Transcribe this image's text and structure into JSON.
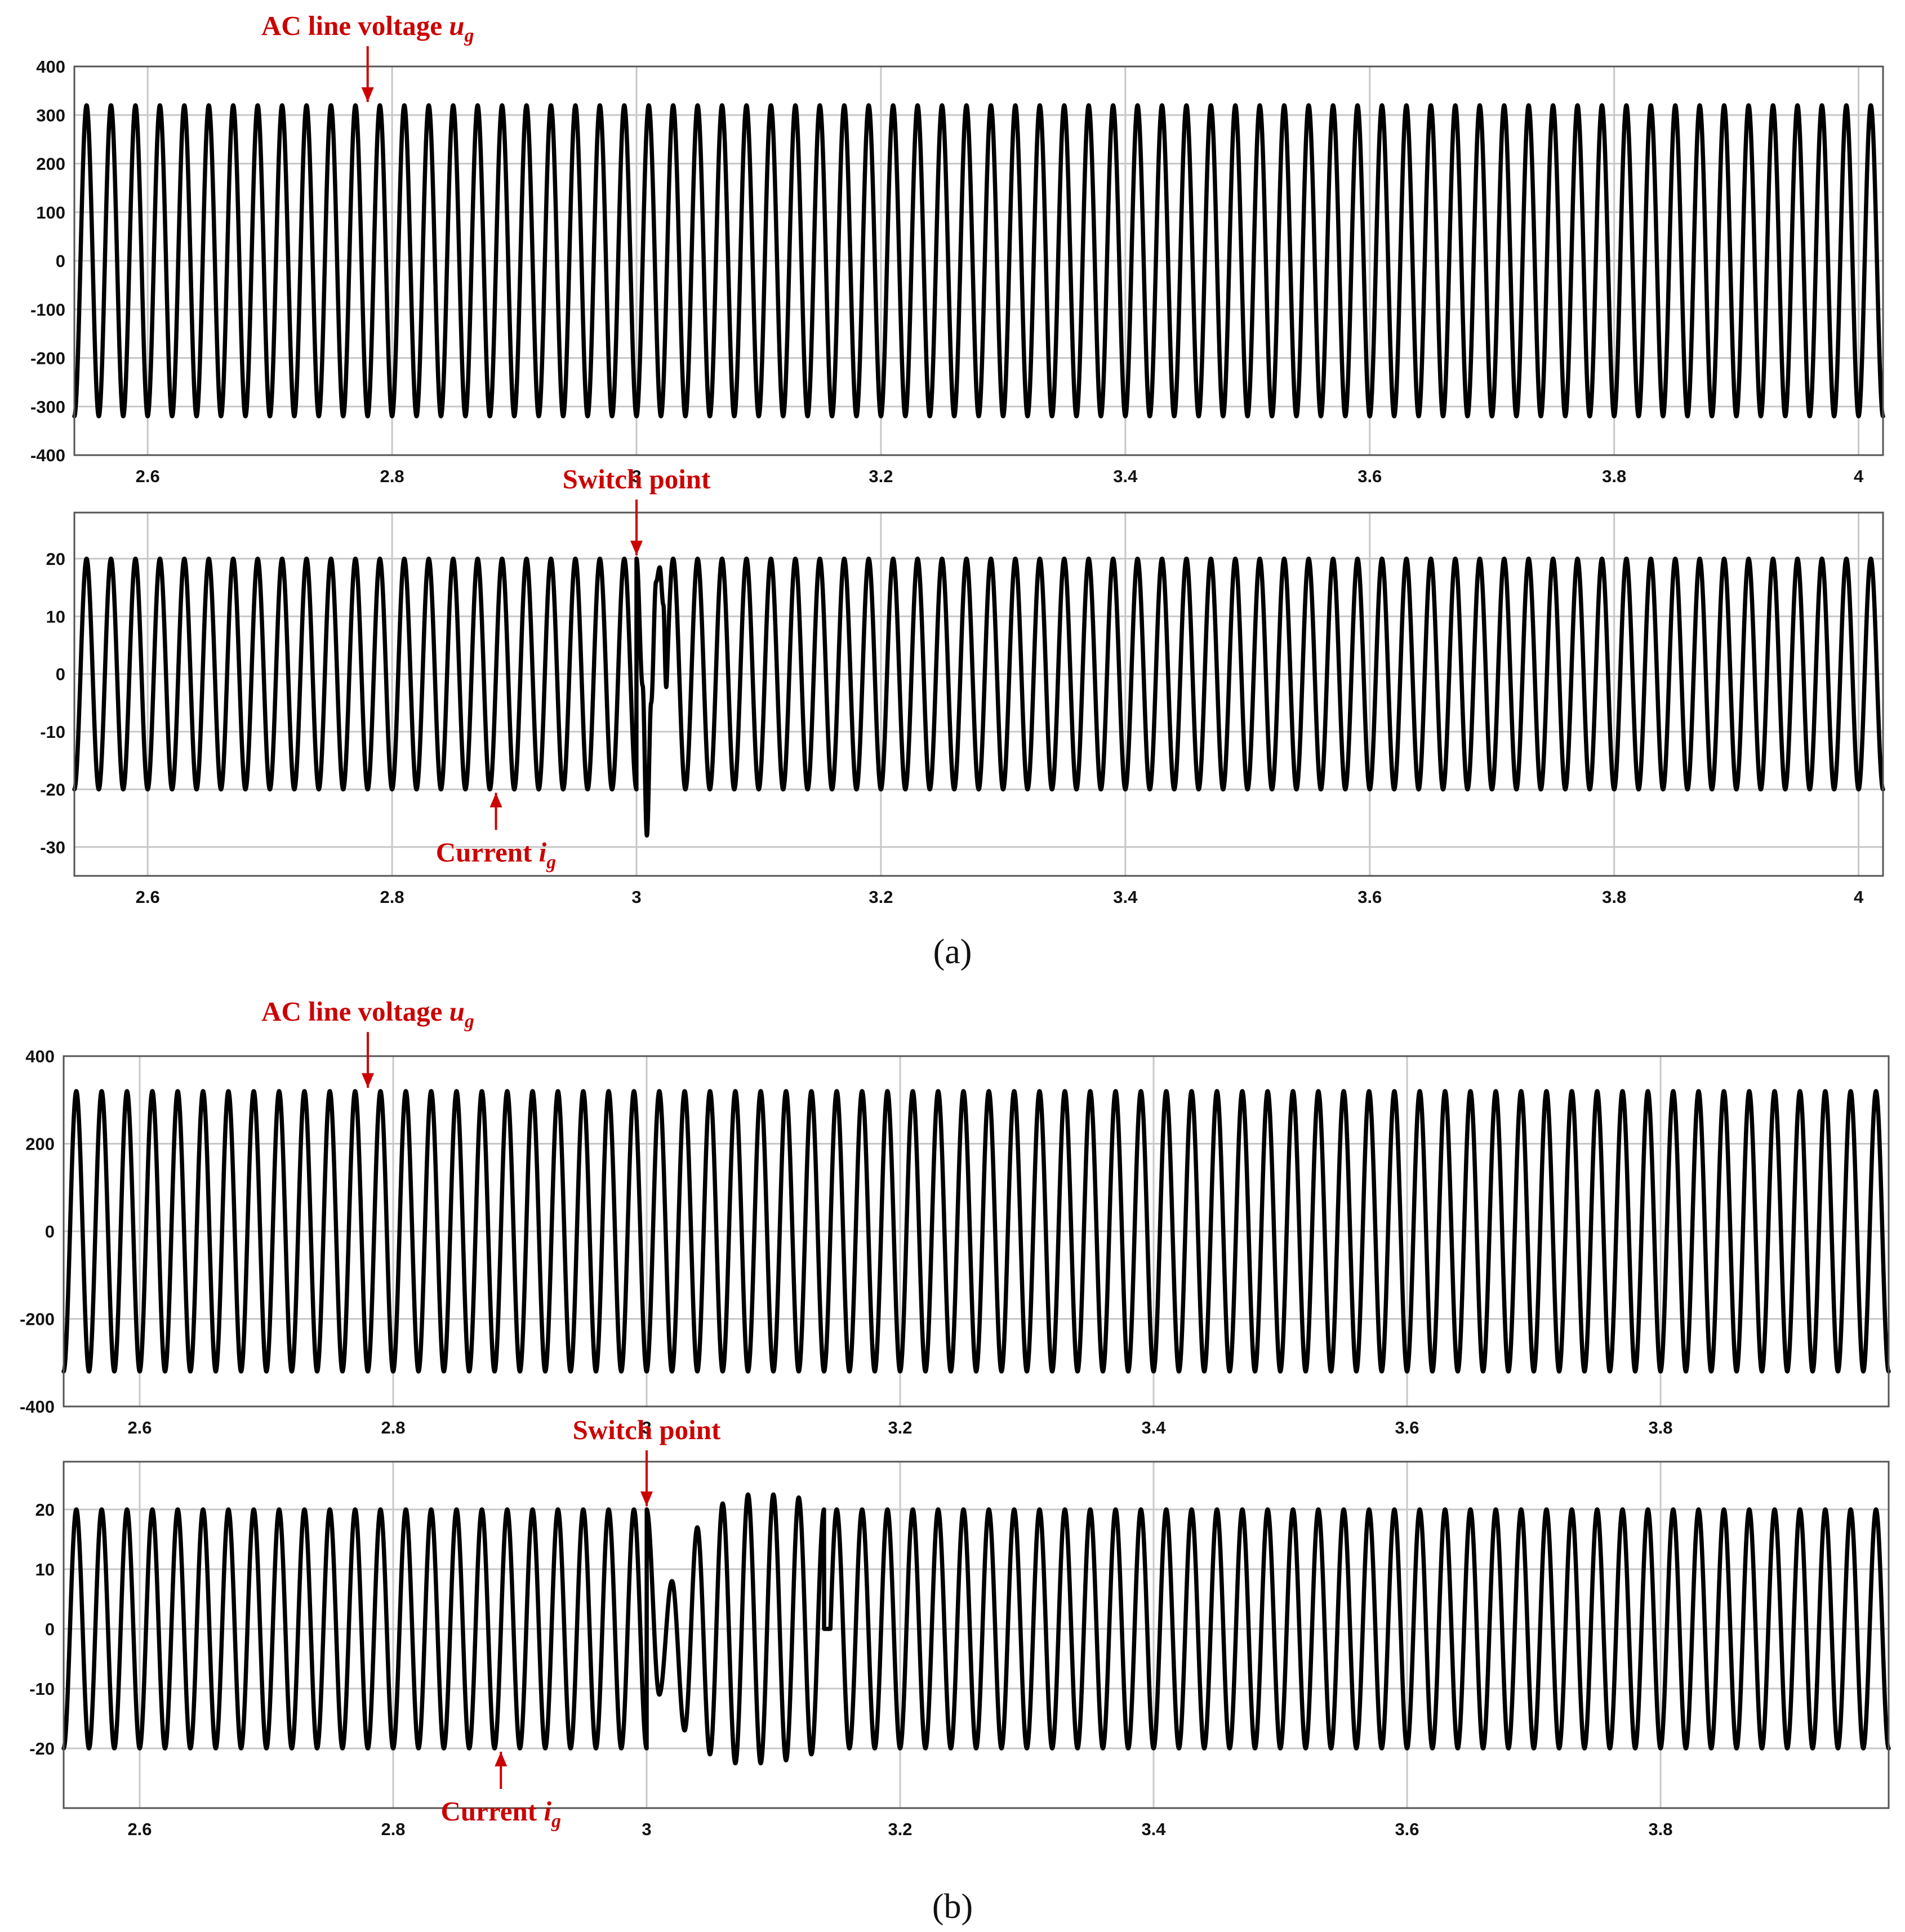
{
  "colors": {
    "trace": "#000000",
    "annotation": "#cc0000",
    "grid": "#c8c8c8",
    "frame": "#555555"
  },
  "figure_labels": [
    {
      "id": "a",
      "text": "(a)"
    },
    {
      "id": "b",
      "text": "(b)"
    }
  ],
  "chart_data": [
    {
      "id": "a-voltage",
      "type": "line",
      "panel": "a",
      "xlim": [
        2.54,
        4.02
      ],
      "ylim": [
        -400,
        400
      ],
      "xticks": [
        2.6,
        2.8,
        3,
        3.2,
        3.4,
        3.6,
        3.8,
        4
      ],
      "yticks": [
        -400,
        -300,
        -200,
        -100,
        0,
        100,
        200,
        300,
        400
      ],
      "grid": true,
      "annotations": [
        {
          "label": "AC line voltage",
          "symbol": "u",
          "subscript": "g",
          "x": 2.78,
          "y": 320,
          "direction": "down"
        }
      ],
      "series": [
        {
          "signal": "sine",
          "frequency_hz": 50,
          "amplitude": 320,
          "phase_deg": -90
        }
      ]
    },
    {
      "id": "a-current",
      "type": "line",
      "panel": "a",
      "xlim": [
        2.54,
        4.02
      ],
      "ylim": [
        -35,
        28
      ],
      "xticks": [
        2.6,
        2.8,
        3,
        3.2,
        3.4,
        3.6,
        3.8,
        4
      ],
      "yticks": [
        -30,
        -20,
        -10,
        0,
        10,
        20
      ],
      "grid": true,
      "annotations": [
        {
          "label": "Switch point",
          "x": 3.0,
          "y": 20,
          "direction": "down"
        },
        {
          "label": "Current",
          "symbol": "i",
          "subscript": "g",
          "x": 2.885,
          "y": -20,
          "direction": "up"
        }
      ],
      "series": [
        {
          "signal": "sine",
          "frequency_hz": 50,
          "amplitude": 20,
          "phase_deg": -90,
          "transient": {
            "points": [
              [
                3.0,
                20
              ],
              [
                3.005,
                -2
              ],
              [
                3.0085,
                -28
              ],
              [
                3.012,
                -5
              ],
              [
                3.016,
                16
              ],
              [
                3.019,
                18.5
              ],
              [
                3.022,
                12
              ]
            ],
            "settle_at": 3.025
          }
        }
      ]
    },
    {
      "id": "b-voltage",
      "type": "line",
      "panel": "b",
      "xlim": [
        2.54,
        3.98
      ],
      "ylim": [
        -400,
        400
      ],
      "xticks": [
        2.6,
        2.8,
        3,
        3.2,
        3.4,
        3.6,
        3.8
      ],
      "yticks": [
        -400,
        -200,
        0,
        200,
        400
      ],
      "grid": true,
      "annotations": [
        {
          "label": "AC line voltage",
          "symbol": "u",
          "subscript": "g",
          "x": 2.78,
          "y": 320,
          "direction": "down"
        }
      ],
      "series": [
        {
          "signal": "sine",
          "frequency_hz": 50,
          "amplitude": 320,
          "phase_deg": -90
        }
      ]
    },
    {
      "id": "b-current",
      "type": "line",
      "panel": "b",
      "xlim": [
        2.54,
        3.98
      ],
      "ylim": [
        -30,
        28
      ],
      "xticks": [
        2.6,
        2.8,
        3,
        3.2,
        3.4,
        3.6,
        3.8
      ],
      "yticks": [
        -20,
        -10,
        0,
        10,
        20
      ],
      "grid": true,
      "annotations": [
        {
          "label": "Switch point",
          "x": 3.0,
          "y": 20,
          "direction": "down"
        },
        {
          "label": "Current",
          "symbol": "i",
          "subscript": "g",
          "x": 2.885,
          "y": -20,
          "direction": "up"
        }
      ],
      "series": [
        {
          "signal": "sine",
          "frequency_hz": 50,
          "amplitude": 20,
          "phase_deg": -90,
          "transient": {
            "from": 3.0,
            "to": 3.145,
            "peaks": [
              [
                3.0,
                20
              ],
              [
                3.01,
                -11
              ],
              [
                3.02,
                8
              ],
              [
                3.03,
                -17
              ],
              [
                3.04,
                17
              ],
              [
                3.05,
                -21
              ],
              [
                3.06,
                21
              ],
              [
                3.07,
                -22.5
              ],
              [
                3.08,
                22.5
              ],
              [
                3.09,
                -22.5
              ],
              [
                3.1,
                22.5
              ],
              [
                3.11,
                -22
              ],
              [
                3.12,
                22
              ],
              [
                3.13,
                -21
              ],
              [
                3.14,
                20
              ]
            ]
          }
        }
      ]
    }
  ]
}
